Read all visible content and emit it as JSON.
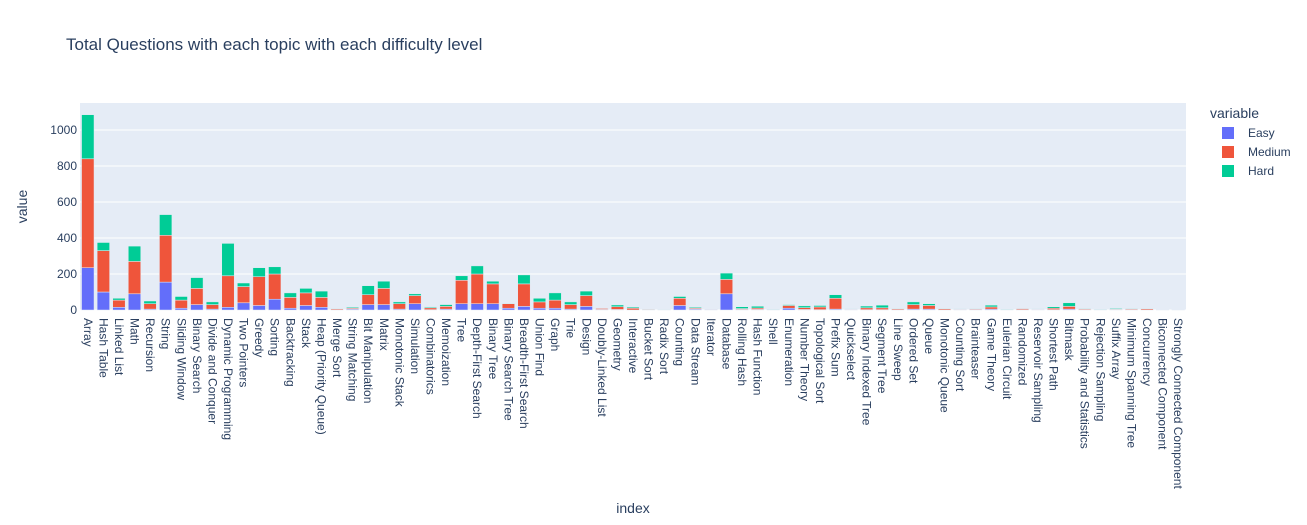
{
  "chart_data": {
    "type": "bar",
    "barmode": "stack",
    "title": "Total Questions with each topic with each difficulty level",
    "xlabel": "index",
    "ylabel": "value",
    "ylim": [
      0,
      1150
    ],
    "yticks": [
      0,
      200,
      400,
      600,
      800,
      1000
    ],
    "grid": true,
    "legend": {
      "title": "variable",
      "position": "right"
    },
    "categories": [
      "Array",
      "Hash Table",
      "Linked List",
      "Math",
      "Recursion",
      "String",
      "Sliding Window",
      "Binary Search",
      "Divide and Conquer",
      "Dynamic Programming",
      "Two Pointers",
      "Greedy",
      "Sorting",
      "Backtracking",
      "Stack",
      "Heap (Priority Queue)",
      "Merge Sort",
      "String Matching",
      "Bit Manipulation",
      "Matrix",
      "Monotonic Stack",
      "Simulation",
      "Combinatorics",
      "Memoization",
      "Tree",
      "Depth-First Search",
      "Binary Tree",
      "Binary Search Tree",
      "Breadth-First Search",
      "Union Find",
      "Graph",
      "Trie",
      "Design",
      "Doubly-Linked List",
      "Geometry",
      "Interactive",
      "Bucket Sort",
      "Radix Sort",
      "Counting",
      "Data Stream",
      "Iterator",
      "Database",
      "Rolling Hash",
      "Hash Function",
      "Shell",
      "Enumeration",
      "Number Theory",
      "Topological Sort",
      "Prefix Sum",
      "Quickselect",
      "Binary Indexed Tree",
      "Segment Tree",
      "Line Sweep",
      "Ordered Set",
      "Queue",
      "Monotonic Queue",
      "Counting Sort",
      "Brainteaser",
      "Game Theory",
      "Eulerian Circuit",
      "Randomized",
      "Reservoir Sampling",
      "Shortest Path",
      "Bitmask",
      "Probability and Statistics",
      "Rejection Sampling",
      "Suffix Array",
      "Minimum Spanning Tree",
      "Concurrency",
      "Biconnected Component",
      "Strongly Connected Component"
    ],
    "series": [
      {
        "name": "Easy",
        "color": "#636efa",
        "values": [
          235,
          100,
          15,
          90,
          5,
          155,
          10,
          30,
          5,
          15,
          40,
          25,
          60,
          10,
          25,
          15,
          2,
          5,
          30,
          30,
          5,
          35,
          2,
          5,
          35,
          35,
          35,
          10,
          20,
          10,
          10,
          5,
          20,
          3,
          3,
          0,
          1,
          0,
          25,
          5,
          3,
          90,
          3,
          3,
          1,
          10,
          3,
          2,
          5,
          1,
          2,
          2,
          2,
          5,
          5,
          1,
          2,
          3,
          5,
          1,
          2,
          1,
          2,
          5,
          1,
          0,
          1,
          1,
          1,
          0,
          0
        ]
      },
      {
        "name": "Medium",
        "color": "#ef553b",
        "values": [
          605,
          230,
          40,
          180,
          30,
          260,
          45,
          90,
          25,
          175,
          90,
          160,
          140,
          60,
          70,
          55,
          5,
          5,
          55,
          90,
          30,
          45,
          10,
          15,
          130,
          165,
          110,
          25,
          125,
          35,
          45,
          25,
          60,
          6,
          15,
          10,
          4,
          1,
          40,
          5,
          3,
          80,
          5,
          8,
          1,
          15,
          10,
          15,
          60,
          3,
          10,
          10,
          5,
          25,
          20,
          6,
          2,
          4,
          12,
          1,
          6,
          3,
          8,
          15,
          5,
          2,
          4,
          5,
          6,
          1,
          1
        ]
      },
      {
        "name": "Hard",
        "color": "#00cc96",
        "values": [
          245,
          45,
          10,
          85,
          15,
          115,
          20,
          60,
          15,
          180,
          20,
          50,
          40,
          25,
          25,
          35,
          3,
          5,
          50,
          40,
          10,
          10,
          5,
          10,
          25,
          45,
          15,
          3,
          50,
          20,
          40,
          15,
          25,
          1,
          10,
          6,
          2,
          2,
          10,
          5,
          2,
          35,
          10,
          10,
          1,
          5,
          10,
          8,
          20,
          2,
          10,
          15,
          2,
          15,
          10,
          2,
          2,
          2,
          10,
          3,
          2,
          2,
          8,
          20,
          3,
          2,
          4,
          3,
          3,
          1,
          1
        ]
      }
    ]
  }
}
